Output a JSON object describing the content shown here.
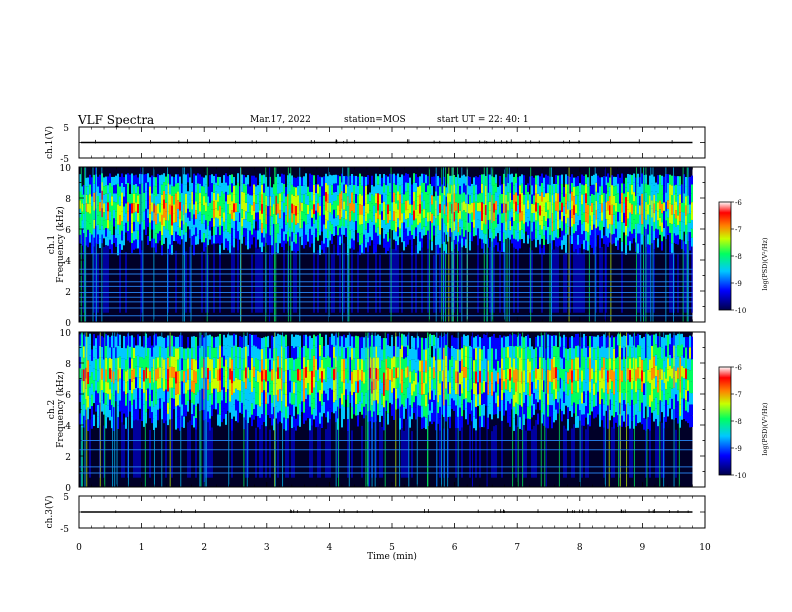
{
  "header": {
    "title": "VLF Spectra",
    "date": "Mar.17, 2022",
    "station": "station=MOS",
    "start": "start  UT  =   22: 40: 1"
  },
  "chart_data": [
    {
      "type": "line",
      "id": "ch1-voltage",
      "ylabel": "ch.1(V)",
      "ylim": [
        -5,
        5
      ],
      "yticks": [
        "5",
        "-5"
      ],
      "series_level": 0
    },
    {
      "type": "heatmap",
      "id": "ch1-spectrogram",
      "ylabel": "ch.1\nFrequency (kHz)",
      "ylabel_lines": [
        "ch.1",
        "Frequency (kHz)"
      ],
      "ylim": [
        0,
        10
      ],
      "yticks": [
        "0",
        "2",
        "4",
        "6",
        "8",
        "10"
      ],
      "xlim": [
        0,
        9.8
      ],
      "colorbar": {
        "label": "log(PSD)(V²/Hz)",
        "range": [
          -10,
          -6
        ],
        "ticks": [
          "-6",
          "-7",
          "-8",
          "-9",
          "-10"
        ]
      },
      "emission_band_khz": [
        4.3,
        9.6
      ],
      "steady_lines_khz": [
        0.4,
        0.9,
        1.3,
        1.6,
        1.9,
        2.3,
        2.6,
        3.1,
        3.4,
        4.4
      ]
    },
    {
      "type": "heatmap",
      "id": "ch2-spectrogram",
      "ylabel": "ch.2\nFrequency (kHz)",
      "ylabel_lines": [
        "ch.2",
        "Frequency (kHz)"
      ],
      "ylim": [
        0,
        10
      ],
      "yticks": [
        "0",
        "2",
        "4",
        "6",
        "8",
        "10"
      ],
      "xlim": [
        0,
        9.8
      ],
      "colorbar": {
        "label": "log(PSD)(V²/Hz)",
        "range": [
          -10,
          -6
        ],
        "ticks": [
          "-6",
          "-7",
          "-8",
          "-9",
          "-10"
        ]
      },
      "emission_band_khz": [
        3.6,
        9.9
      ],
      "steady_lines_khz": [
        0.9,
        1.3,
        2.4,
        3.0
      ]
    },
    {
      "type": "line",
      "id": "ch3-voltage",
      "ylabel": "ch.3(V)",
      "ylim": [
        -5,
        5
      ],
      "yticks": [
        "5",
        "-5"
      ],
      "series_level": 0,
      "xlabel": "Time  (min)",
      "xlim": [
        0,
        10
      ],
      "xticks": [
        "0",
        "1",
        "2",
        "3",
        "4",
        "5",
        "6",
        "7",
        "8",
        "9",
        "10"
      ]
    }
  ]
}
